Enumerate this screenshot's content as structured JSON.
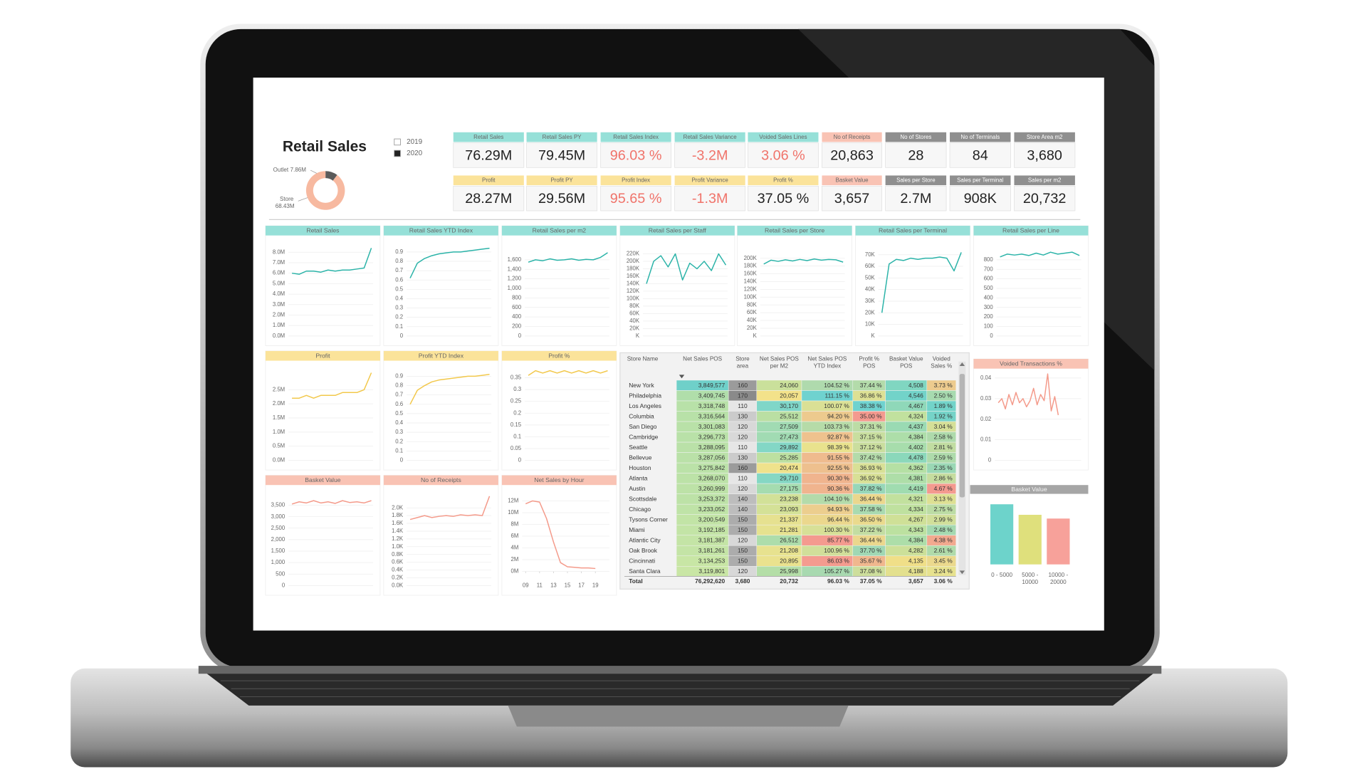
{
  "title": "Retail Sales",
  "year_legend": [
    {
      "label": "2019",
      "filled": false
    },
    {
      "label": "2020",
      "filled": true
    }
  ],
  "kpis": [
    {
      "label": "Retail Sales",
      "value": "76.29M",
      "color": "#96e0d8"
    },
    {
      "label": "Retail Sales PY",
      "value": "79.45M",
      "color": "#96e0d8"
    },
    {
      "label": "Retail Sales Index",
      "value": "96.03 %",
      "color": "#96e0d8",
      "value_color": "#f0736a"
    },
    {
      "label": "Retail Sales Variance",
      "value": "-3.2M",
      "color": "#96e0d8",
      "value_color": "#f0736a"
    },
    {
      "label": "Voided Sales Lines",
      "value": "3.06 %",
      "color": "#96e0d8",
      "value_color": "#f0736a"
    },
    {
      "label": "No of Receipts",
      "value": "20,863",
      "color": "#f9c3b4"
    },
    {
      "label": "No of Stores",
      "value": "28",
      "color": "#8f8f8f",
      "label_color": "#ffffff"
    },
    {
      "label": "No of Terminals",
      "value": "84",
      "color": "#8f8f8f",
      "label_color": "#ffffff"
    },
    {
      "label": "Store Area m2",
      "value": "3,680",
      "color": "#8f8f8f",
      "label_color": "#ffffff"
    },
    {
      "label": "Profit",
      "value": "28.27M",
      "color": "#fbe39a"
    },
    {
      "label": "Profit PY",
      "value": "29.56M",
      "color": "#fbe39a"
    },
    {
      "label": "Profit Index",
      "value": "95.65 %",
      "color": "#fbe39a",
      "value_color": "#f0736a"
    },
    {
      "label": "Profit Variance",
      "value": "-1.3M",
      "color": "#fbe39a",
      "value_color": "#f0736a"
    },
    {
      "label": "Profit %",
      "value": "37.05 %",
      "color": "#fbe39a"
    },
    {
      "label": "Basket Value",
      "value": "3,657",
      "color": "#f9c3b4"
    },
    {
      "label": "Sales per Store",
      "value": "2.7M",
      "color": "#8f8f8f",
      "label_color": "#ffffff"
    },
    {
      "label": "Sales per Terminal",
      "value": "908K",
      "color": "#8f8f8f",
      "label_color": "#ffffff"
    },
    {
      "label": "Sales per m2",
      "value": "20,732",
      "color": "#8f8f8f",
      "label_color": "#ffffff"
    }
  ],
  "chart_data": [
    {
      "type": "pie",
      "categories": [
        "Outlet",
        "Store"
      ],
      "values": [
        7.86,
        68.43
      ],
      "value_labels": [
        "7.86M",
        "68.43M"
      ],
      "colors": [
        "#5a5a5a",
        "#f7b9a0"
      ]
    },
    {
      "type": "line",
      "title": "Retail Sales",
      "header_color": "#96e0d8",
      "color": "#2bb3a8",
      "ylim": [
        0,
        9.1
      ],
      "yticks": [
        {
          "value": 0,
          "label": "0.0M"
        },
        {
          "value": 1,
          "label": "1.0M"
        },
        {
          "value": 2,
          "label": "2.0M"
        },
        {
          "value": 3,
          "label": "3.0M"
        },
        {
          "value": 4,
          "label": "4.0M"
        },
        {
          "value": 5,
          "label": "5.0M"
        },
        {
          "value": 6,
          "label": "6.0M"
        },
        {
          "value": 7,
          "label": "7.0M"
        },
        {
          "value": 8,
          "label": "8.0M"
        }
      ],
      "values": [
        6.0,
        5.9,
        6.2,
        6.2,
        6.1,
        6.3,
        6.2,
        6.3,
        6.3,
        6.4,
        6.5,
        8.4
      ]
    },
    {
      "type": "line",
      "title": "Retail Sales YTD Index",
      "header_color": "#96e0d8",
      "color": "#2bb3a8",
      "ylim": [
        0,
        1.02
      ],
      "yticks": [
        0,
        0.1,
        0.2,
        0.3,
        0.4,
        0.5,
        0.6,
        0.7,
        0.8,
        0.9
      ],
      "values": [
        0.62,
        0.78,
        0.83,
        0.86,
        0.88,
        0.89,
        0.9,
        0.9,
        0.91,
        0.92,
        0.93,
        0.94
      ]
    },
    {
      "type": "line",
      "title": "Retail Sales per m2",
      "header_color": "#96e0d8",
      "color": "#2bb3a8",
      "ylim": [
        0,
        2000
      ],
      "yticks": [
        0,
        200,
        400,
        600,
        800,
        {
          "value": 1000,
          "label": "1,000"
        },
        {
          "value": 1200,
          "label": "1,200"
        },
        {
          "value": 1400,
          "label": "1,400"
        },
        {
          "value": 1600,
          "label": "1,600"
        }
      ],
      "values": [
        1550,
        1600,
        1580,
        1620,
        1590,
        1600,
        1620,
        1590,
        1610,
        1600,
        1650,
        1750
      ]
    },
    {
      "type": "line",
      "title": "Retail Sales per Staff",
      "header_color": "#96e0d8",
      "color": "#2bb3a8",
      "ylim": [
        0,
        255
      ],
      "yticks": [
        {
          "value": 0,
          "label": "K"
        },
        {
          "value": 20,
          "label": "20K"
        },
        {
          "value": 40,
          "label": "40K"
        },
        {
          "value": 60,
          "label": "60K"
        },
        {
          "value": 80,
          "label": "80K"
        },
        {
          "value": 100,
          "label": "100K"
        },
        {
          "value": 120,
          "label": "120K"
        },
        {
          "value": 140,
          "label": "140K"
        },
        {
          "value": 160,
          "label": "160K"
        },
        {
          "value": 180,
          "label": "180K"
        },
        {
          "value": 200,
          "label": "200K"
        },
        {
          "value": 220,
          "label": "220K"
        }
      ],
      "values": [
        140,
        200,
        215,
        185,
        220,
        150,
        195,
        180,
        200,
        175,
        220,
        190
      ]
    },
    {
      "type": "line",
      "title": "Retail Sales per Store",
      "header_color": "#96e0d8",
      "color": "#2bb3a8",
      "ylim": [
        0,
        245
      ],
      "yticks": [
        {
          "value": 0,
          "label": "K"
        },
        {
          "value": 20,
          "label": "20K"
        },
        {
          "value": 40,
          "label": "40K"
        },
        {
          "value": 60,
          "label": "60K"
        },
        {
          "value": 80,
          "label": "80K"
        },
        {
          "value": 100,
          "label": "100K"
        },
        {
          "value": 120,
          "label": "120K"
        },
        {
          "value": 140,
          "label": "140K"
        },
        {
          "value": 160,
          "label": "160K"
        },
        {
          "value": 180,
          "label": "180K"
        },
        {
          "value": 200,
          "label": "200K"
        }
      ],
      "values": [
        185,
        195,
        192,
        196,
        193,
        197,
        194,
        198,
        195,
        197,
        196,
        190
      ]
    },
    {
      "type": "line",
      "title": "Retail Sales per Terminal",
      "header_color": "#96e0d8",
      "color": "#2bb3a8",
      "ylim": [
        0,
        82
      ],
      "yticks": [
        {
          "value": 0,
          "label": "K"
        },
        {
          "value": 10,
          "label": "10K"
        },
        {
          "value": 20,
          "label": "20K"
        },
        {
          "value": 30,
          "label": "30K"
        },
        {
          "value": 40,
          "label": "40K"
        },
        {
          "value": 50,
          "label": "50K"
        },
        {
          "value": 60,
          "label": "60K"
        },
        {
          "value": 70,
          "label": "70K"
        }
      ],
      "values": [
        20,
        62,
        66,
        65,
        67,
        66,
        67,
        67,
        68,
        67,
        56,
        72
      ]
    },
    {
      "type": "line",
      "title": "Retail Sales per Line",
      "header_color": "#96e0d8",
      "color": "#2bb3a8",
      "ylim": [
        0,
        1000
      ],
      "yticks": [
        0,
        100,
        200,
        300,
        400,
        500,
        600,
        700,
        800
      ],
      "values": [
        830,
        860,
        850,
        860,
        845,
        870,
        850,
        880,
        860,
        870,
        880,
        845
      ]
    },
    {
      "type": "line",
      "title": "Profit",
      "header_color": "#fbe39a",
      "color": "#f2c84b",
      "ylim": [
        0,
        3.34
      ],
      "yticks": [
        {
          "value": 0,
          "label": "0.0M"
        },
        {
          "value": 0.5,
          "label": "0.5M"
        },
        {
          "value": 1,
          "label": "1.0M"
        },
        {
          "value": 1.5,
          "label": "1.5M"
        },
        {
          "value": 2,
          "label": "2.0M"
        },
        {
          "value": 2.5,
          "label": "2.5M"
        }
      ],
      "values": [
        2.2,
        2.2,
        2.3,
        2.2,
        2.3,
        2.3,
        2.3,
        2.4,
        2.4,
        2.4,
        2.5,
        3.1
      ]
    },
    {
      "type": "line",
      "title": "Profit YTD Index",
      "header_color": "#fbe39a",
      "color": "#f2c84b",
      "ylim": [
        0,
        1.01
      ],
      "yticks": [
        0,
        0.1,
        0.2,
        0.3,
        0.4,
        0.5,
        0.6,
        0.7,
        0.8,
        0.9
      ],
      "values": [
        0.6,
        0.75,
        0.8,
        0.84,
        0.86,
        0.87,
        0.88,
        0.89,
        0.9,
        0.9,
        0.91,
        0.92
      ]
    },
    {
      "type": "line",
      "title": "Profit %",
      "header_color": "#fbe39a",
      "color": "#f2c84b",
      "ylim": [
        0,
        0.4
      ],
      "yticks": [
        0,
        0.05,
        0.1,
        0.15,
        0.2,
        0.25,
        0.3,
        0.35
      ],
      "values": [
        0.36,
        0.38,
        0.37,
        0.38,
        0.37,
        0.38,
        0.37,
        0.38,
        0.37,
        0.38,
        0.37,
        0.38
      ]
    },
    {
      "type": "line",
      "title": "Basket Value",
      "header_color": "#f9c3b4",
      "color": "#f49a8a",
      "ylim": [
        0,
        4150
      ],
      "yticks": [
        0,
        500,
        {
          "value": 1000,
          "label": "1,000"
        },
        {
          "value": 1500,
          "label": "1,500"
        },
        {
          "value": 2000,
          "label": "2,000"
        },
        {
          "value": 2500,
          "label": "2,500"
        },
        {
          "value": 3000,
          "label": "3,000"
        },
        {
          "value": 3500,
          "label": "3,500"
        }
      ],
      "values": [
        3550,
        3650,
        3600,
        3700,
        3600,
        3650,
        3580,
        3700,
        3620,
        3650,
        3600,
        3700
      ]
    },
    {
      "type": "line",
      "title": "No of Receipts",
      "header_color": "#f9c3b4",
      "color": "#f49a8a",
      "ylim": [
        0,
        2.45
      ],
      "yticks": [
        {
          "value": 0,
          "label": "0.0K"
        },
        {
          "value": 0.2,
          "label": "0.2K"
        },
        {
          "value": 0.4,
          "label": "0.4K"
        },
        {
          "value": 0.6,
          "label": "0.6K"
        },
        {
          "value": 0.8,
          "label": "0.8K"
        },
        {
          "value": 1,
          "label": "1.0K"
        },
        {
          "value": 1.2,
          "label": "1.2K"
        },
        {
          "value": 1.4,
          "label": "1.4K"
        },
        {
          "value": 1.6,
          "label": "1.6K"
        },
        {
          "value": 1.8,
          "label": "1.8K"
        },
        {
          "value": 2,
          "label": "2.0K"
        }
      ],
      "values": [
        1.7,
        1.75,
        1.8,
        1.75,
        1.78,
        1.8,
        1.78,
        1.82,
        1.8,
        1.82,
        1.8,
        2.3
      ]
    },
    {
      "type": "line",
      "title": "Net Sales by Hour",
      "header_color": "#f9c3b4",
      "color": "#f49a8a",
      "ylim": [
        0,
        13.8
      ],
      "xlim": [
        8.5,
        19.5
      ],
      "yticks": [
        {
          "value": 0,
          "label": "0M"
        },
        {
          "value": 2,
          "label": "2M"
        },
        {
          "value": 4,
          "label": "4M"
        },
        {
          "value": 6,
          "label": "6M"
        },
        {
          "value": 8,
          "label": "8M"
        },
        {
          "value": 10,
          "label": "10M"
        },
        {
          "value": 12,
          "label": "12M"
        }
      ],
      "xticks": [
        {
          "value": 9,
          "label": "09"
        },
        11,
        13,
        15,
        17,
        19
      ],
      "x": [
        9,
        10,
        11,
        12,
        13,
        14,
        15,
        16,
        17,
        18,
        19
      ],
      "values": [
        11.5,
        12,
        11.8,
        9,
        5,
        1.5,
        0.8,
        0.7,
        0.6,
        0.6,
        0.5
      ]
    },
    {
      "type": "line",
      "title": "Voided Transactions %",
      "header_color": "#f9c3b4",
      "color": "#f49a8a",
      "ylim": [
        0,
        0.042
      ],
      "yticks": [
        0,
        0.01,
        0.02,
        0.03,
        0.04
      ],
      "values": [
        0.028,
        0.03,
        0.025,
        0.032,
        0.027,
        0.033,
        0.028,
        0.03,
        0.026,
        0.029,
        0.035,
        0.027,
        0.032,
        0.029,
        0.042,
        0.024,
        0.031,
        0.022
      ]
    },
    {
      "type": "bar",
      "title": "Basket Value",
      "header_color": "#a6a6a6",
      "categories": [
        "0 - 5000",
        "5000 - 10000",
        "10000 - 20000"
      ],
      "values": [
        4000,
        3300,
        3050
      ],
      "colors": [
        "#6dd3cb",
        "#dfe07c",
        "#f7a19a"
      ],
      "ylim": [
        0,
        4400
      ]
    }
  ],
  "table": {
    "columns": [
      "Store Name",
      "Net Sales POS",
      "Store area",
      "Net Sales POS per M2",
      "Net Sales POS YTD Index",
      "Profit % POS",
      "Basket Value POS",
      "Voided Sales %"
    ],
    "column_colors": [
      null,
      [
        "#c9e6a5",
        "#a9dcab",
        "#6fd0c9"
      ],
      [
        "#e6e6e6",
        "#bdbdbd",
        "#8a8a8a"
      ],
      [
        "#f3e28a",
        "#bfe0a0",
        "#7fd6c8"
      ],
      [
        "#f49a8f",
        "#e9e28d",
        "#6fd2cf"
      ],
      [
        "#f49a8f",
        "#e9e28d",
        "#6fd2cf"
      ],
      [
        "#f0df88",
        "#bde1a0",
        "#72d3c9"
      ],
      [
        "#72d3c9",
        "#eae28d",
        "#f49a8f"
      ]
    ],
    "rows": [
      [
        "New York",
        "3,849,577",
        "160",
        "24,060",
        "104.52 %",
        "37.44 %",
        "4,508",
        "3.73 %"
      ],
      [
        "Philadelphia",
        "3,409,745",
        "170",
        "20,057",
        "111.15 %",
        "36.86 %",
        "4,546",
        "2.50 %"
      ],
      [
        "Los Angeles",
        "3,318,748",
        "110",
        "30,170",
        "100.07 %",
        "38.38 %",
        "4,467",
        "1.89 %"
      ],
      [
        "Columbia",
        "3,316,564",
        "130",
        "25,512",
        "94.20 %",
        "35.00 %",
        "4,324",
        "1.92 %"
      ],
      [
        "San Diego",
        "3,301,083",
        "120",
        "27,509",
        "103.73 %",
        "37.31 %",
        "4,437",
        "3.04 %"
      ],
      [
        "Cambridge",
        "3,296,773",
        "120",
        "27,473",
        "92.87 %",
        "37.15 %",
        "4,384",
        "2.58 %"
      ],
      [
        "Seattle",
        "3,288,095",
        "110",
        "29,892",
        "98.39 %",
        "37.12 %",
        "4,402",
        "2.81 %"
      ],
      [
        "Bellevue",
        "3,287,056",
        "130",
        "25,285",
        "91.55 %",
        "37.42 %",
        "4,478",
        "2.59 %"
      ],
      [
        "Houston",
        "3,275,842",
        "160",
        "20,474",
        "92.55 %",
        "36.93 %",
        "4,362",
        "2.35 %"
      ],
      [
        "Atlanta",
        "3,268,070",
        "110",
        "29,710",
        "90.30 %",
        "36.92 %",
        "4,381",
        "2.86 %"
      ],
      [
        "Austin",
        "3,260,999",
        "120",
        "27,175",
        "90.36 %",
        "37.82 %",
        "4,419",
        "4.67 %"
      ],
      [
        "Scottsdale",
        "3,253,372",
        "140",
        "23,238",
        "104.10 %",
        "36.44 %",
        "4,321",
        "3.13 %"
      ],
      [
        "Chicago",
        "3,233,052",
        "140",
        "23,093",
        "94.93 %",
        "37.58 %",
        "4,334",
        "2.75 %"
      ],
      [
        "Tysons Corner",
        "3,200,549",
        "150",
        "21,337",
        "96.44 %",
        "36.50 %",
        "4,267",
        "2.99 %"
      ],
      [
        "Miami",
        "3,192,185",
        "150",
        "21,281",
        "100.30 %",
        "37.22 %",
        "4,343",
        "2.48 %"
      ],
      [
        "Atlantic City",
        "3,181,387",
        "120",
        "26,512",
        "85.77 %",
        "36.44 %",
        "4,384",
        "4.38 %"
      ],
      [
        "Oak Brook",
        "3,181,261",
        "150",
        "21,208",
        "100.96 %",
        "37.70 %",
        "4,282",
        "2.61 %"
      ],
      [
        "Cincinnati",
        "3,134,253",
        "150",
        "20,895",
        "86.03 %",
        "35.67 %",
        "4,135",
        "3.45 %"
      ],
      [
        "Santa Clara",
        "3,119,801",
        "120",
        "25,998",
        "105.27 %",
        "37.08 %",
        "4,188",
        "3.24 %"
      ]
    ],
    "total": [
      "Total",
      "76,292,620",
      "3,680",
      "20,732",
      "96.03 %",
      "37.05 %",
      "3,657",
      "3.06 %"
    ]
  }
}
